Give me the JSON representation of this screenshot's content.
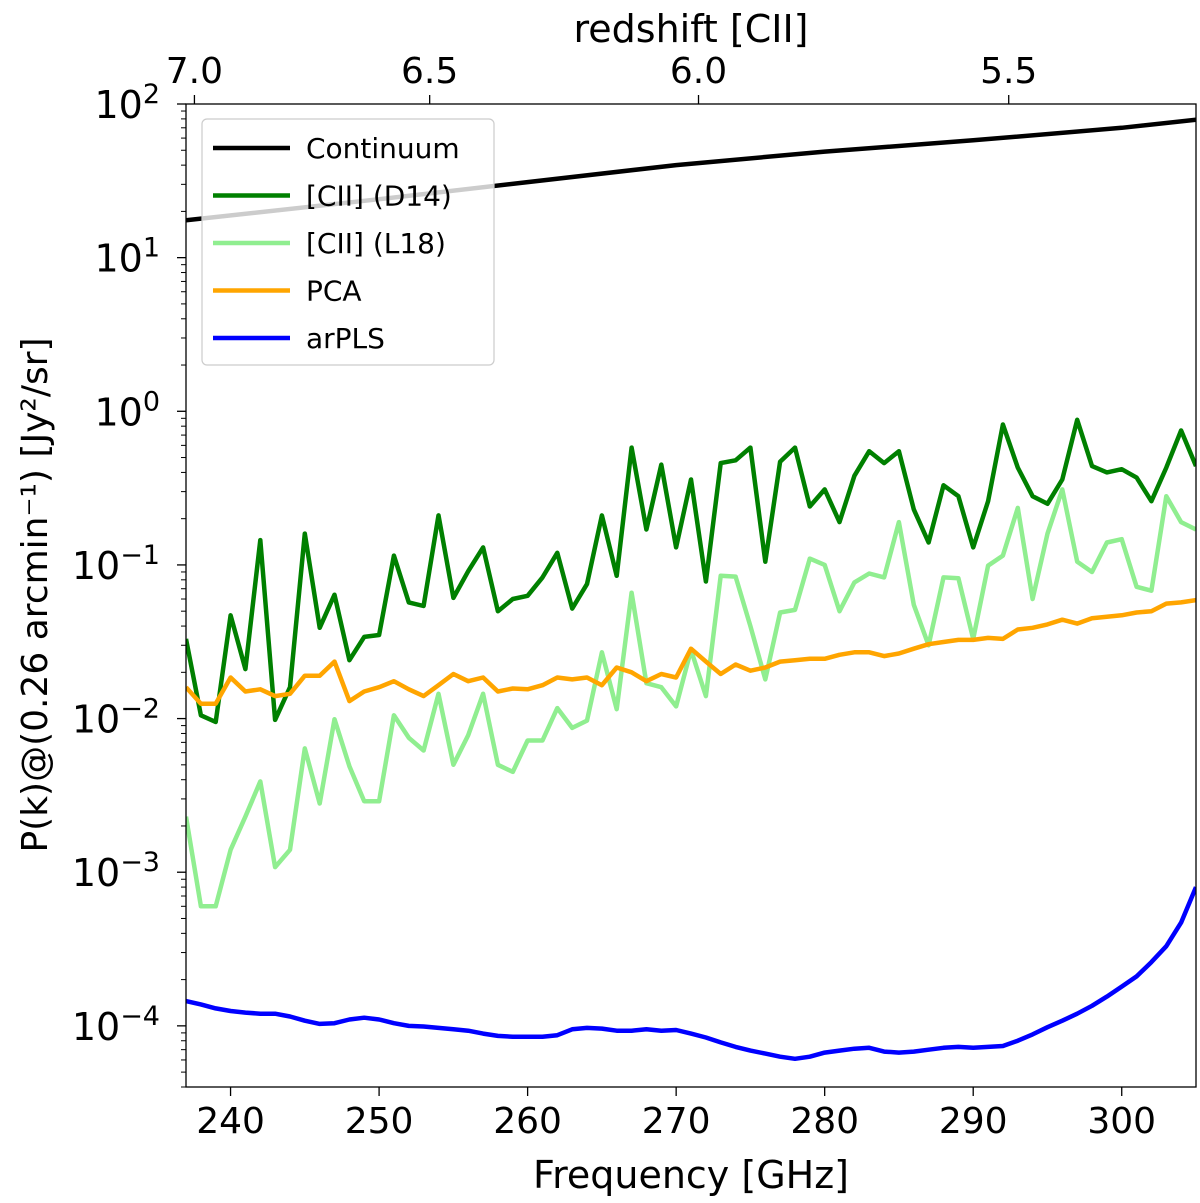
{
  "chart_data": {
    "type": "line",
    "title": "",
    "xlabel": "Frequency [GHz]",
    "ylabel": "P(k)@(0.26 arcmin⁻¹) [Jy²/sr]",
    "top_xlabel": "redshift [CII]",
    "xlim": [
      237,
      305
    ],
    "ylim": [
      4e-05,
      100
    ],
    "yscale": "log",
    "x_ticks": [
      240,
      250,
      260,
      270,
      280,
      290,
      300
    ],
    "x_tick_labels": [
      "240",
      "250",
      "260",
      "270",
      "280",
      "290",
      "300"
    ],
    "y_ticks": [
      0.0001,
      0.001,
      0.01,
      0.1,
      1,
      10,
      100
    ],
    "y_tick_labels": [
      {
        "base": "10",
        "exp": "−4"
      },
      {
        "base": "10",
        "exp": "−3"
      },
      {
        "base": "10",
        "exp": "−2"
      },
      {
        "base": "10",
        "exp": "−1"
      },
      {
        "base": "10",
        "exp": "0"
      },
      {
        "base": "10",
        "exp": "1"
      },
      {
        "base": "10",
        "exp": "2"
      }
    ],
    "top_ticks": [
      {
        "z": 7.0,
        "label": "7.0"
      },
      {
        "z": 6.5,
        "label": "6.5"
      },
      {
        "z": 6.0,
        "label": "6.0"
      },
      {
        "z": 5.5,
        "label": "5.5"
      }
    ],
    "rest_frequency_ghz": 1900.54,
    "grid": false,
    "legend_position": "top-left",
    "series": [
      {
        "name": "Continuum",
        "color": "#000000",
        "x": [
          237,
          250,
          260,
          270,
          280,
          290,
          300,
          305
        ],
        "values": [
          17.5,
          24,
          31,
          40,
          49,
          58,
          70,
          79
        ]
      },
      {
        "name": "[CII] (D14)",
        "color": "#008000",
        "x": [
          237,
          238,
          239,
          240,
          241,
          242,
          243,
          244,
          245,
          246,
          247,
          248,
          249,
          250,
          251,
          252,
          253,
          254,
          255,
          256,
          257,
          258,
          259,
          260,
          261,
          262,
          263,
          264,
          265,
          266,
          267,
          268,
          269,
          270,
          271,
          272,
          273,
          274,
          275,
          276,
          277,
          278,
          279,
          280,
          281,
          282,
          283,
          284,
          285,
          286,
          287,
          288,
          289,
          290,
          291,
          292,
          293,
          294,
          295,
          296,
          297,
          298,
          299,
          300,
          301,
          302,
          303,
          304,
          305
        ],
        "values": [
          0.033,
          0.0105,
          0.0095,
          0.047,
          0.021,
          0.145,
          0.0098,
          0.016,
          0.16,
          0.039,
          0.064,
          0.024,
          0.034,
          0.035,
          0.115,
          0.057,
          0.054,
          0.21,
          0.061,
          0.091,
          0.13,
          0.05,
          0.06,
          0.063,
          0.083,
          0.12,
          0.052,
          0.075,
          0.21,
          0.085,
          0.58,
          0.17,
          0.45,
          0.13,
          0.36,
          0.078,
          0.46,
          0.48,
          0.58,
          0.105,
          0.47,
          0.58,
          0.24,
          0.31,
          0.19,
          0.38,
          0.55,
          0.46,
          0.55,
          0.23,
          0.14,
          0.33,
          0.28,
          0.13,
          0.26,
          0.82,
          0.43,
          0.28,
          0.25,
          0.36,
          0.88,
          0.44,
          0.4,
          0.42,
          0.37,
          0.26,
          0.43,
          0.75,
          0.44
        ]
      },
      {
        "name": "[CII] (L18)",
        "color": "#90ee90",
        "x": [
          237,
          238,
          239,
          240,
          241,
          242,
          243,
          244,
          245,
          246,
          247,
          248,
          249,
          250,
          251,
          252,
          253,
          254,
          255,
          256,
          257,
          258,
          259,
          260,
          261,
          262,
          263,
          264,
          265,
          266,
          267,
          268,
          269,
          270,
          271,
          272,
          273,
          274,
          275,
          276,
          277,
          278,
          279,
          280,
          281,
          282,
          283,
          284,
          285,
          286,
          287,
          288,
          289,
          290,
          291,
          292,
          293,
          294,
          295,
          296,
          297,
          298,
          299,
          300,
          301,
          302,
          303,
          304,
          305
        ],
        "values": [
          0.0023,
          0.0006,
          0.0006,
          0.0014,
          0.0023,
          0.0039,
          0.00108,
          0.0014,
          0.0064,
          0.0028,
          0.0099,
          0.0049,
          0.0029,
          0.0029,
          0.0105,
          0.0075,
          0.0062,
          0.0145,
          0.005,
          0.0078,
          0.0145,
          0.005,
          0.0045,
          0.0072,
          0.0072,
          0.0117,
          0.0087,
          0.0097,
          0.027,
          0.0115,
          0.066,
          0.017,
          0.016,
          0.012,
          0.028,
          0.014,
          0.085,
          0.084,
          0.04,
          0.018,
          0.049,
          0.051,
          0.11,
          0.1,
          0.05,
          0.077,
          0.088,
          0.083,
          0.19,
          0.055,
          0.03,
          0.083,
          0.082,
          0.033,
          0.099,
          0.115,
          0.235,
          0.06,
          0.16,
          0.31,
          0.105,
          0.09,
          0.14,
          0.147,
          0.072,
          0.068,
          0.28,
          0.19,
          0.17
        ]
      },
      {
        "name": "PCA",
        "color": "#ffa500",
        "x": [
          237,
          238,
          239,
          240,
          241,
          242,
          243,
          244,
          245,
          246,
          247,
          248,
          249,
          250,
          251,
          252,
          253,
          254,
          255,
          256,
          257,
          258,
          259,
          260,
          261,
          262,
          263,
          264,
          265,
          266,
          267,
          268,
          269,
          270,
          271,
          272,
          273,
          274,
          275,
          276,
          277,
          278,
          279,
          280,
          281,
          282,
          283,
          284,
          285,
          286,
          287,
          288,
          289,
          290,
          291,
          292,
          293,
          294,
          295,
          296,
          297,
          298,
          299,
          300,
          301,
          302,
          303,
          304,
          305
        ],
        "values": [
          0.016,
          0.0125,
          0.0125,
          0.0185,
          0.015,
          0.0155,
          0.014,
          0.0145,
          0.019,
          0.019,
          0.0235,
          0.013,
          0.015,
          0.016,
          0.0175,
          0.0155,
          0.014,
          0.0165,
          0.0195,
          0.0175,
          0.0185,
          0.015,
          0.0157,
          0.0155,
          0.0165,
          0.0185,
          0.018,
          0.0185,
          0.0165,
          0.0215,
          0.02,
          0.0175,
          0.0195,
          0.0185,
          0.0285,
          0.0235,
          0.0195,
          0.0225,
          0.0205,
          0.0215,
          0.0235,
          0.024,
          0.0245,
          0.0245,
          0.026,
          0.027,
          0.027,
          0.0255,
          0.0265,
          0.0285,
          0.0305,
          0.0315,
          0.0325,
          0.0325,
          0.0335,
          0.033,
          0.038,
          0.039,
          0.041,
          0.044,
          0.0415,
          0.045,
          0.046,
          0.047,
          0.049,
          0.05,
          0.056,
          0.057,
          0.059
        ]
      },
      {
        "name": "arPLS",
        "color": "#0000ff",
        "x": [
          237,
          238,
          239,
          240,
          241,
          242,
          243,
          244,
          245,
          246,
          247,
          248,
          249,
          250,
          251,
          252,
          253,
          254,
          255,
          256,
          257,
          258,
          259,
          260,
          261,
          262,
          263,
          264,
          265,
          266,
          267,
          268,
          269,
          270,
          271,
          272,
          273,
          274,
          275,
          276,
          277,
          278,
          279,
          280,
          281,
          282,
          283,
          284,
          285,
          286,
          287,
          288,
          289,
          290,
          291,
          292,
          293,
          294,
          295,
          296,
          297,
          298,
          299,
          300,
          301,
          302,
          303,
          304,
          305
        ],
        "values": [
          0.000145,
          0.000138,
          0.00013,
          0.000125,
          0.000122,
          0.00012,
          0.00012,
          0.000115,
          0.000108,
          0.000103,
          0.000104,
          0.00011,
          0.000113,
          0.00011,
          0.000104,
          0.0001,
          9.9e-05,
          9.7e-05,
          9.5e-05,
          9.3e-05,
          8.9e-05,
          8.6e-05,
          8.5e-05,
          8.5e-05,
          8.5e-05,
          8.7e-05,
          9.5e-05,
          9.7e-05,
          9.6e-05,
          9.3e-05,
          9.3e-05,
          9.5e-05,
          9.3e-05,
          9.4e-05,
          8.9e-05,
          8.4e-05,
          7.8e-05,
          7.3e-05,
          6.9e-05,
          6.6e-05,
          6.3e-05,
          6.1e-05,
          6.3e-05,
          6.7e-05,
          6.9e-05,
          7.1e-05,
          7.2e-05,
          6.8e-05,
          6.7e-05,
          6.8e-05,
          7e-05,
          7.2e-05,
          7.3e-05,
          7.2e-05,
          7.3e-05,
          7.4e-05,
          8e-05,
          8.8e-05,
          9.8e-05,
          0.000108,
          0.00012,
          0.000135,
          0.000155,
          0.00018,
          0.00021,
          0.00026,
          0.00033,
          0.00047,
          0.0008
        ]
      }
    ]
  }
}
